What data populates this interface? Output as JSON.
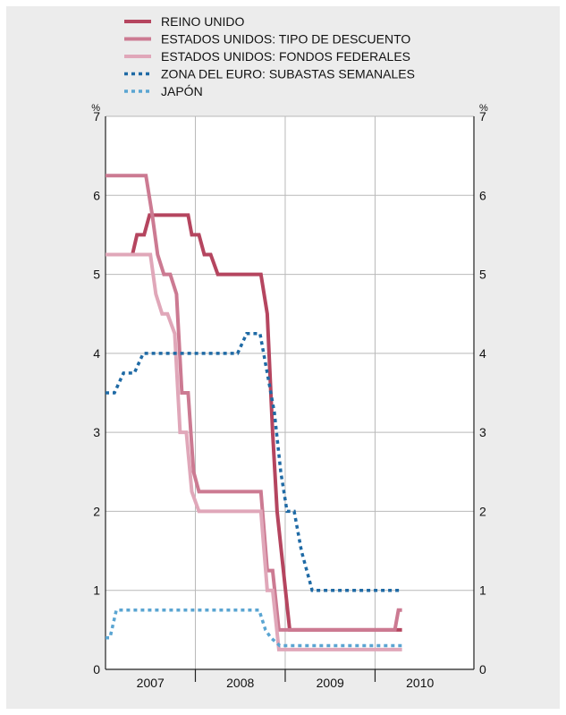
{
  "chart_data": {
    "type": "line",
    "title": "",
    "xlabel": "",
    "ylabel": "",
    "y_unit_left": "%",
    "y_unit_right": "%",
    "ylim": [
      0,
      7
    ],
    "yticks": [
      "0",
      "1",
      "2",
      "3",
      "4",
      "5",
      "6",
      "7"
    ],
    "xlim": [
      2006.5,
      2010.6
    ],
    "xticks": [
      {
        "label": "2007",
        "x": 2007.0
      },
      {
        "label": "2008",
        "x": 2008.0
      },
      {
        "label": "2009",
        "x": 2009.0
      },
      {
        "label": "2010",
        "x": 2010.0
      }
    ],
    "year_boundaries": [
      2007.5,
      2008.5,
      2009.5
    ],
    "grid": "horizontal",
    "legend_position": "top-left",
    "series": [
      {
        "name": "REINO UNIDO",
        "color": "#b5455f",
        "style": "solid",
        "points": [
          [
            2006.72,
            5.25
          ],
          [
            2006.8,
            5.25
          ],
          [
            2006.85,
            5.5
          ],
          [
            2006.93,
            5.5
          ],
          [
            2006.99,
            5.75
          ],
          [
            2007.42,
            5.75
          ],
          [
            2007.46,
            5.5
          ],
          [
            2007.54,
            5.5
          ],
          [
            2007.6,
            5.25
          ],
          [
            2007.67,
            5.25
          ],
          [
            2007.75,
            5.0
          ],
          [
            2008.23,
            5.0
          ],
          [
            2008.3,
            4.5
          ],
          [
            2008.36,
            3.0
          ],
          [
            2008.41,
            2.0
          ],
          [
            2008.55,
            0.5
          ],
          [
            2009.8,
            0.5
          ]
        ]
      },
      {
        "name": "ESTADOS UNIDOS: TIPO DE DESCUENTO",
        "color": "#cc7a92",
        "style": "solid",
        "points": [
          [
            2006.5,
            6.25
          ],
          [
            2006.95,
            6.25
          ],
          [
            2007.02,
            5.75
          ],
          [
            2007.08,
            5.25
          ],
          [
            2007.15,
            5.0
          ],
          [
            2007.22,
            5.0
          ],
          [
            2007.29,
            4.75
          ],
          [
            2007.35,
            3.5
          ],
          [
            2007.42,
            3.5
          ],
          [
            2007.48,
            2.5
          ],
          [
            2007.54,
            2.25
          ],
          [
            2008.23,
            2.25
          ],
          [
            2008.3,
            1.25
          ],
          [
            2008.36,
            1.25
          ],
          [
            2008.43,
            0.5
          ],
          [
            2009.72,
            0.5
          ],
          [
            2009.76,
            0.75
          ],
          [
            2009.8,
            0.75
          ]
        ]
      },
      {
        "name": "ESTADOS UNIDOS: FONDOS FEDERALES",
        "color": "#e0a7b9",
        "style": "solid",
        "points": [
          [
            2006.5,
            5.25
          ],
          [
            2007.0,
            5.25
          ],
          [
            2007.06,
            4.75
          ],
          [
            2007.13,
            4.5
          ],
          [
            2007.19,
            4.5
          ],
          [
            2007.27,
            4.25
          ],
          [
            2007.33,
            3.0
          ],
          [
            2007.4,
            3.0
          ],
          [
            2007.46,
            2.25
          ],
          [
            2007.54,
            2.0
          ],
          [
            2008.23,
            2.0
          ],
          [
            2008.3,
            1.0
          ],
          [
            2008.36,
            1.0
          ],
          [
            2008.43,
            0.25
          ],
          [
            2009.8,
            0.25
          ]
        ]
      },
      {
        "name": "ZONA DEL EURO: SUBASTAS SEMANALES",
        "color": "#1f6aa5",
        "style": "dotted",
        "points": [
          [
            2006.5,
            3.5
          ],
          [
            2006.6,
            3.5
          ],
          [
            2006.7,
            3.75
          ],
          [
            2006.82,
            3.75
          ],
          [
            2006.92,
            4.0
          ],
          [
            2007.97,
            4.0
          ],
          [
            2008.07,
            4.25
          ],
          [
            2008.22,
            4.25
          ],
          [
            2008.3,
            3.75
          ],
          [
            2008.38,
            3.25
          ],
          [
            2008.45,
            2.5
          ],
          [
            2008.52,
            2.0
          ],
          [
            2008.6,
            2.0
          ],
          [
            2008.68,
            1.5
          ],
          [
            2008.8,
            1.0
          ],
          [
            2009.8,
            1.0
          ]
        ]
      },
      {
        "name": "JAPÓN",
        "color": "#5aa5d2",
        "style": "dotted",
        "points": [
          [
            2006.5,
            0.4
          ],
          [
            2006.55,
            0.4
          ],
          [
            2006.62,
            0.75
          ],
          [
            2008.21,
            0.75
          ],
          [
            2008.28,
            0.5
          ],
          [
            2008.34,
            0.4
          ],
          [
            2008.44,
            0.3
          ],
          [
            2009.8,
            0.3
          ]
        ]
      }
    ]
  }
}
